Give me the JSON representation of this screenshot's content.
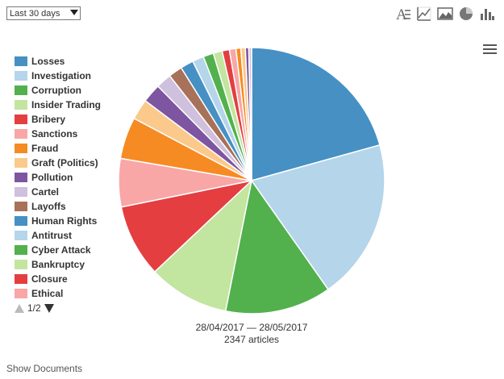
{
  "filter": {
    "period_selected": "Last 30 days"
  },
  "toolbar": {
    "icons": [
      "text-mode-icon",
      "line-chart-icon",
      "area-chart-icon",
      "pie-chart-icon",
      "bar-chart-icon"
    ]
  },
  "chart_data": {
    "type": "pie",
    "title": "",
    "legend_position": "left",
    "total_articles": 2347,
    "slices": [
      {
        "name": "Losses",
        "value": 494,
        "color": "#4690c4"
      },
      {
        "name": "Investigation",
        "value": 467,
        "color": "#b4d5ea"
      },
      {
        "name": "Corruption",
        "value": 308,
        "color": "#52b14c"
      },
      {
        "name": "Insider Trading",
        "value": 235,
        "color": "#c2e5a0"
      },
      {
        "name": "Bribery",
        "value": 211,
        "color": "#e43e41"
      },
      {
        "name": "Sanctions",
        "value": 140,
        "color": "#f9a6a7"
      },
      {
        "name": "Fraud",
        "value": 121,
        "color": "#f68b23"
      },
      {
        "name": "Graft (Politics)",
        "value": 60,
        "color": "#fbc98b"
      },
      {
        "name": "Pollution",
        "value": 55,
        "color": "#7d55a0"
      },
      {
        "name": "Cartel",
        "value": 45,
        "color": "#cfc0dd"
      },
      {
        "name": "Layoffs",
        "value": 40,
        "color": "#a8715a"
      },
      {
        "name": "Human Rights",
        "value": 38,
        "color": "#4690c4"
      },
      {
        "name": "Antitrust",
        "value": 33,
        "color": "#b4d5ea"
      },
      {
        "name": "Cyber Attack",
        "value": 30,
        "color": "#52b14c"
      },
      {
        "name": "Bankruptcy",
        "value": 26,
        "color": "#c2e5a0"
      },
      {
        "name": "Closure",
        "value": 21,
        "color": "#e43e41"
      },
      {
        "name": "Ethical",
        "value": 19,
        "color": "#f9a6a7"
      },
      {
        "value": 14,
        "color": "#f68b23"
      },
      {
        "value": 13,
        "color": "#fbc98b"
      },
      {
        "value": 10,
        "color": "#7d55a0"
      },
      {
        "value": 8,
        "color": "#cfc0dd"
      }
    ]
  },
  "legend": {
    "page_indicator": "1/2"
  },
  "caption": {
    "date_range": "28/04/2017 — 28/05/2017",
    "articles": "2347 articles"
  },
  "footer": {
    "show_documents": "Show Documents"
  }
}
